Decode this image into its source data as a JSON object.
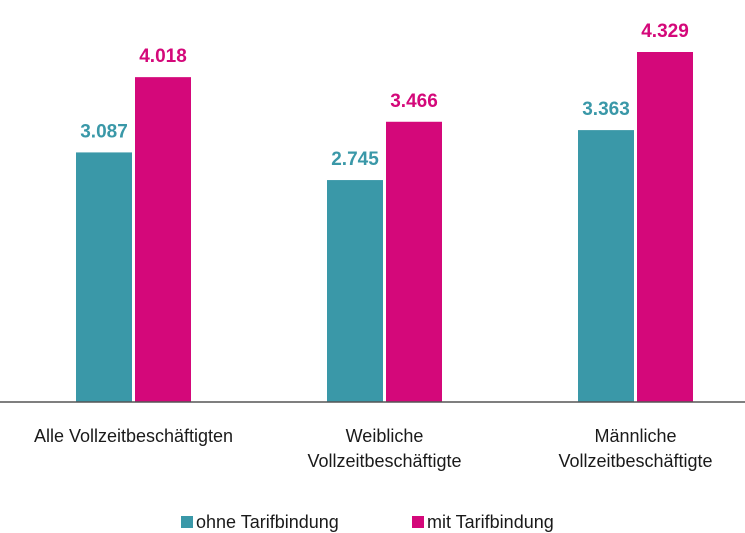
{
  "chart_data": {
    "type": "bar",
    "categories": [
      [
        "Alle Vollzeitbeschäftigten"
      ],
      [
        "Weibliche",
        "Vollzeitbeschäftigte"
      ],
      [
        "Männliche",
        "Vollzeitbeschäftigte"
      ]
    ],
    "series": [
      {
        "name": "ohne Tarifbindung",
        "color": "#3a98a8",
        "values": [
          3087,
          2745,
          3363
        ],
        "value_labels": [
          "3.087",
          "2.745",
          "3.363"
        ]
      },
      {
        "name": "mit Tarifbindung",
        "color": "#d4087a",
        "values": [
          4018,
          3466,
          4329
        ],
        "value_labels": [
          "4.018",
          "3.466",
          "4.329"
        ]
      }
    ],
    "legend": "bottom"
  }
}
